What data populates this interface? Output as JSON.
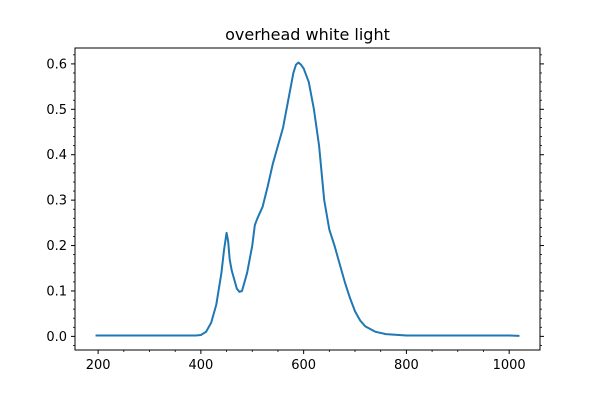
{
  "chart_data": {
    "type": "line",
    "title": "overhead white light",
    "xlabel": "",
    "ylabel": "",
    "xlim": [
      155,
      1060
    ],
    "ylim": [
      -0.03,
      0.635
    ],
    "xticks": [
      200,
      400,
      600,
      800,
      1000
    ],
    "yticks": [
      0.0,
      0.1,
      0.2,
      0.3,
      0.4,
      0.5,
      0.6
    ],
    "xtick_labels": [
      "200",
      "400",
      "600",
      "800",
      "1000"
    ],
    "ytick_labels": [
      "0.0",
      "0.1",
      "0.2",
      "0.3",
      "0.4",
      "0.5",
      "0.6"
    ],
    "grid": false,
    "line_color": "#1f77b4",
    "series": [
      {
        "x": [
          195,
          250,
          300,
          350,
          390,
          400,
          410,
          420,
          430,
          440,
          445,
          450,
          453,
          456,
          460,
          465,
          470,
          475,
          480,
          490,
          500,
          505,
          510,
          520,
          530,
          540,
          550,
          560,
          570,
          580,
          585,
          590,
          595,
          600,
          610,
          620,
          630,
          640,
          650,
          660,
          670,
          680,
          690,
          700,
          710,
          720,
          740,
          760,
          800,
          900,
          1000,
          1020
        ],
        "y": [
          0.002,
          0.002,
          0.002,
          0.002,
          0.002,
          0.003,
          0.01,
          0.03,
          0.07,
          0.14,
          0.19,
          0.228,
          0.21,
          0.17,
          0.145,
          0.125,
          0.105,
          0.098,
          0.1,
          0.14,
          0.2,
          0.245,
          0.26,
          0.285,
          0.33,
          0.38,
          0.42,
          0.46,
          0.52,
          0.58,
          0.598,
          0.603,
          0.598,
          0.59,
          0.56,
          0.5,
          0.42,
          0.3,
          0.235,
          0.2,
          0.16,
          0.12,
          0.085,
          0.055,
          0.035,
          0.022,
          0.01,
          0.005,
          0.002,
          0.002,
          0.002,
          0.001
        ]
      }
    ]
  }
}
